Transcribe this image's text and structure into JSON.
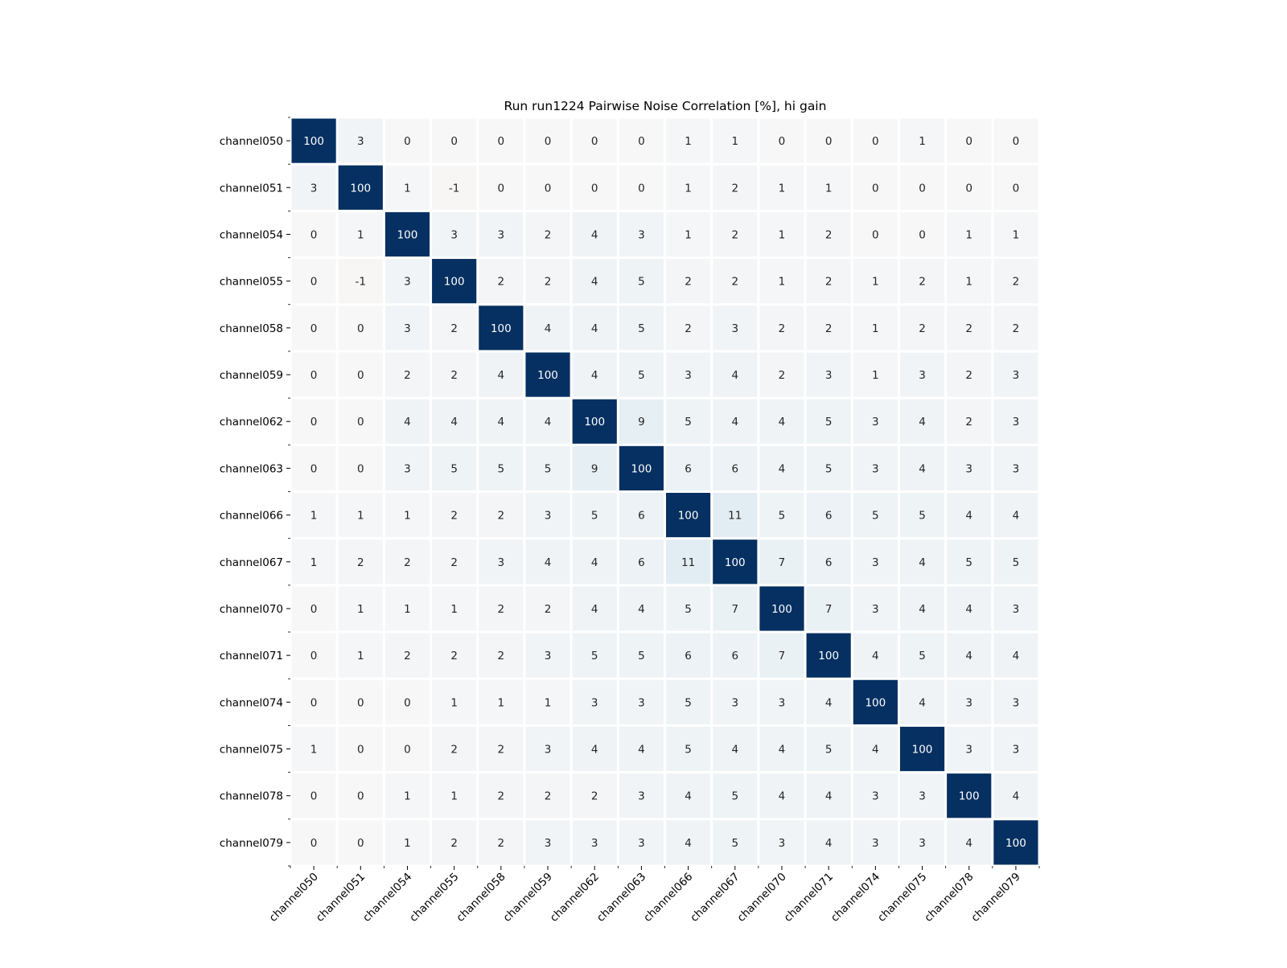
{
  "chart_data": {
    "type": "heatmap",
    "title": "Run run1224 Pairwise Noise Correlation [%], hi gain",
    "xlabel": "",
    "ylabel": "",
    "colormap": "RdBu_r",
    "vmin": -100,
    "vmax": 100,
    "grid": false,
    "legend": "none",
    "x_categories": [
      "channel050",
      "channel051",
      "channel054",
      "channel055",
      "channel058",
      "channel059",
      "channel062",
      "channel063",
      "channel066",
      "channel067",
      "channel070",
      "channel071",
      "channel074",
      "channel075",
      "channel078",
      "channel079"
    ],
    "y_categories": [
      "channel050",
      "channel051",
      "channel054",
      "channel055",
      "channel058",
      "channel059",
      "channel062",
      "channel063",
      "channel066",
      "channel067",
      "channel070",
      "channel071",
      "channel074",
      "channel075",
      "channel078",
      "channel079"
    ],
    "values": [
      [
        100,
        3,
        0,
        0,
        0,
        0,
        0,
        0,
        1,
        1,
        0,
        0,
        0,
        1,
        0,
        0
      ],
      [
        3,
        100,
        1,
        -1,
        0,
        0,
        0,
        0,
        1,
        2,
        1,
        1,
        0,
        0,
        0,
        0
      ],
      [
        0,
        1,
        100,
        3,
        3,
        2,
        4,
        3,
        1,
        2,
        1,
        2,
        0,
        0,
        1,
        1
      ],
      [
        0,
        -1,
        3,
        100,
        2,
        2,
        4,
        5,
        2,
        2,
        1,
        2,
        1,
        2,
        1,
        2
      ],
      [
        0,
        0,
        3,
        2,
        100,
        4,
        4,
        5,
        2,
        3,
        2,
        2,
        1,
        2,
        2,
        2
      ],
      [
        0,
        0,
        2,
        2,
        4,
        100,
        4,
        5,
        3,
        4,
        2,
        3,
        1,
        3,
        2,
        3
      ],
      [
        0,
        0,
        4,
        4,
        4,
        4,
        100,
        9,
        5,
        4,
        4,
        5,
        3,
        4,
        2,
        3
      ],
      [
        0,
        0,
        3,
        5,
        5,
        5,
        9,
        100,
        6,
        6,
        4,
        5,
        3,
        4,
        3,
        3
      ],
      [
        1,
        1,
        1,
        2,
        2,
        3,
        5,
        6,
        100,
        11,
        5,
        6,
        5,
        5,
        4,
        4
      ],
      [
        1,
        2,
        2,
        2,
        3,
        4,
        4,
        6,
        11,
        100,
        7,
        6,
        3,
        4,
        5,
        5
      ],
      [
        0,
        1,
        1,
        1,
        2,
        2,
        4,
        4,
        5,
        7,
        100,
        7,
        3,
        4,
        4,
        3
      ],
      [
        0,
        1,
        2,
        2,
        2,
        3,
        5,
        5,
        6,
        6,
        7,
        100,
        4,
        5,
        4,
        4
      ],
      [
        0,
        0,
        0,
        1,
        1,
        1,
        3,
        3,
        5,
        3,
        3,
        4,
        100,
        4,
        3,
        3
      ],
      [
        1,
        0,
        0,
        2,
        2,
        3,
        4,
        4,
        5,
        4,
        4,
        5,
        4,
        100,
        3,
        3
      ],
      [
        0,
        0,
        1,
        1,
        2,
        2,
        2,
        3,
        4,
        5,
        4,
        4,
        3,
        3,
        100,
        4
      ],
      [
        0,
        0,
        1,
        2,
        2,
        3,
        3,
        3,
        4,
        5,
        3,
        4,
        3,
        3,
        4,
        100
      ]
    ]
  }
}
